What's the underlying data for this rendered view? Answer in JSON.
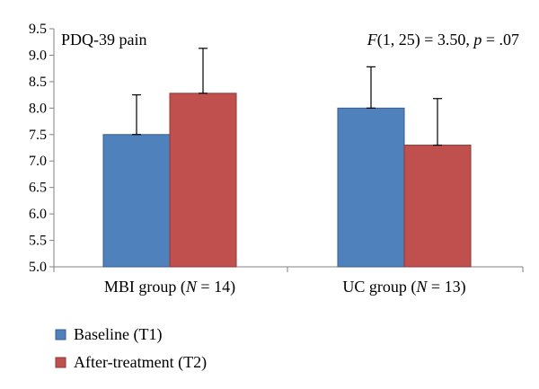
{
  "chart_data": {
    "type": "bar",
    "title": "PDQ-39 pain",
    "annotation": {
      "F": "F",
      "df": "(1, 25) = 3.50, ",
      "p": "p",
      "pval": " = .07"
    },
    "categories": [
      {
        "label": "MBI group (",
        "N": "N",
        "nval": " = 14)"
      },
      {
        "label": "UC group (",
        "N": "N",
        "nval": " = 13)"
      }
    ],
    "series": [
      {
        "name": "Baseline (T1)",
        "color": "#4F81BD",
        "values": [
          7.5,
          8.0
        ],
        "errors": [
          0.75,
          0.78
        ]
      },
      {
        "name": "After-treatment (T2)",
        "color": "#C0504D",
        "values": [
          8.28,
          7.3
        ],
        "errors": [
          0.85,
          0.88
        ]
      }
    ],
    "ylim": [
      5.0,
      9.5
    ],
    "yticks": [
      "5.0",
      "5.5",
      "6.0",
      "6.5",
      "7.0",
      "7.5",
      "8.0",
      "8.5",
      "9.0",
      "9.5"
    ],
    "grid": false,
    "legend_position": "bottom-left"
  }
}
